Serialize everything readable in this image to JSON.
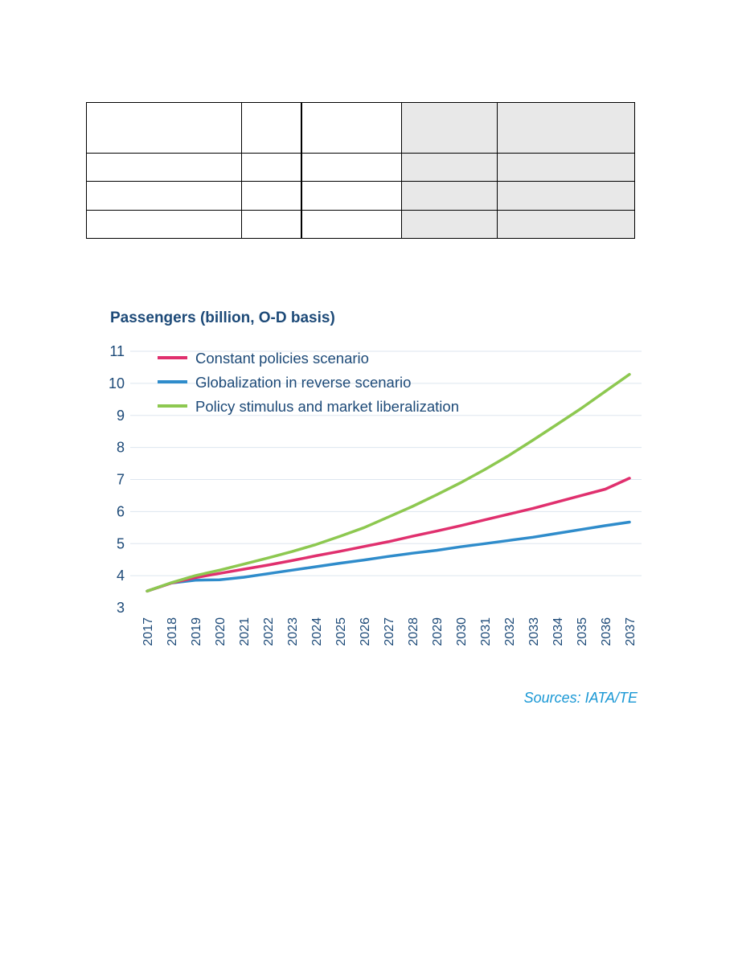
{
  "chart_data": {
    "type": "line",
    "title": "Passengers (billion, O-D basis)",
    "x": [
      2017,
      2018,
      2019,
      2020,
      2021,
      2022,
      2023,
      2024,
      2025,
      2026,
      2027,
      2028,
      2029,
      2030,
      2031,
      2032,
      2033,
      2034,
      2035,
      2036,
      2037
    ],
    "series": [
      {
        "name": "Constant policies scenario",
        "color": "#e0306e",
        "values": [
          3.52,
          3.77,
          3.94,
          4.07,
          4.2,
          4.33,
          4.47,
          4.62,
          4.76,
          4.91,
          5.06,
          5.23,
          5.39,
          5.56,
          5.74,
          5.92,
          6.1,
          6.3,
          6.5,
          6.7,
          7.04
        ]
      },
      {
        "name": "Globalization in reverse scenario",
        "color": "#2f8ccb",
        "values": [
          3.52,
          3.77,
          3.86,
          3.87,
          3.95,
          4.06,
          4.17,
          4.28,
          4.39,
          4.49,
          4.6,
          4.7,
          4.79,
          4.9,
          5.0,
          5.1,
          5.2,
          5.32,
          5.44,
          5.56,
          5.67
        ]
      },
      {
        "name": "Policy stimulus and market liberalization",
        "color": "#8dc850",
        "values": [
          3.52,
          3.78,
          4.0,
          4.17,
          4.36,
          4.55,
          4.75,
          4.97,
          5.23,
          5.5,
          5.83,
          6.16,
          6.52,
          6.9,
          7.31,
          7.75,
          8.23,
          8.72,
          9.22,
          9.75,
          10.28
        ]
      }
    ],
    "ylim": [
      3,
      11
    ],
    "yticks": [
      3,
      4,
      5,
      6,
      7,
      8,
      9,
      10,
      11
    ],
    "grid": true,
    "legend": "top-left",
    "source": "Sources: IATA/TE"
  }
}
